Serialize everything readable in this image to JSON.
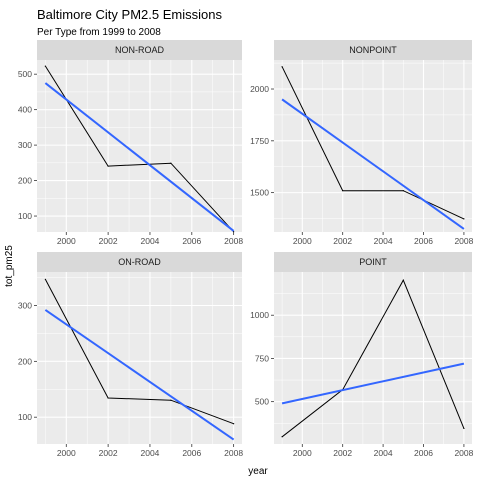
{
  "chart_data": {
    "type": "line",
    "title": "Baltimore City PM2.5 Emissions",
    "subtitle": "Per Type from 1999 to 2008",
    "xlabel": "year",
    "ylabel": "tot_pm25",
    "facet_layout": "2x2",
    "grid": true,
    "series_color": "#000000",
    "trend_color": "#3366ff",
    "panel_bg": "#ebebeb",
    "strip_bg": "#d9d9d9",
    "xlim": [
      1998.6,
      2008.4
    ],
    "x_ticks": [
      2000,
      2002,
      2004,
      2006,
      2008
    ],
    "panels": [
      {
        "type": "NON-ROAD",
        "x": [
          1999,
          2002,
          2005,
          2008
        ],
        "y": [
          522.9,
          240.8,
          248.9,
          55.8
        ],
        "trend": [
          [
            1999,
            475
          ],
          [
            2008,
            58
          ]
        ],
        "ylim": [
          55,
          540
        ],
        "y_ticks": [
          100,
          200,
          300,
          400,
          500
        ]
      },
      {
        "type": "NONPOINT",
        "x": [
          1999,
          2002,
          2005,
          2008
        ],
        "y": [
          2107.6,
          1509.5,
          1509.5,
          1373.2
        ],
        "trend": [
          [
            1999,
            1950
          ],
          [
            2008,
            1325
          ]
        ],
        "ylim": [
          1310,
          2140
        ],
        "y_ticks": [
          1500,
          1750,
          2000
        ]
      },
      {
        "type": "ON-ROAD",
        "x": [
          1999,
          2002,
          2005,
          2008
        ],
        "y": [
          346.8,
          134.3,
          130.4,
          88.3
        ],
        "trend": [
          [
            1999,
            292
          ],
          [
            2008,
            60
          ]
        ],
        "ylim": [
          52,
          360
        ],
        "y_ticks": [
          100,
          200,
          300
        ]
      },
      {
        "type": "POINT",
        "x": [
          1999,
          2002,
          2005,
          2008
        ],
        "y": [
          296.8,
          569.3,
          1202.5,
          344.98
        ],
        "trend": [
          [
            1999,
            490
          ],
          [
            2008,
            720
          ]
        ],
        "ylim": [
          255,
          1250
        ],
        "y_ticks": [
          500,
          750,
          1000
        ]
      }
    ]
  }
}
